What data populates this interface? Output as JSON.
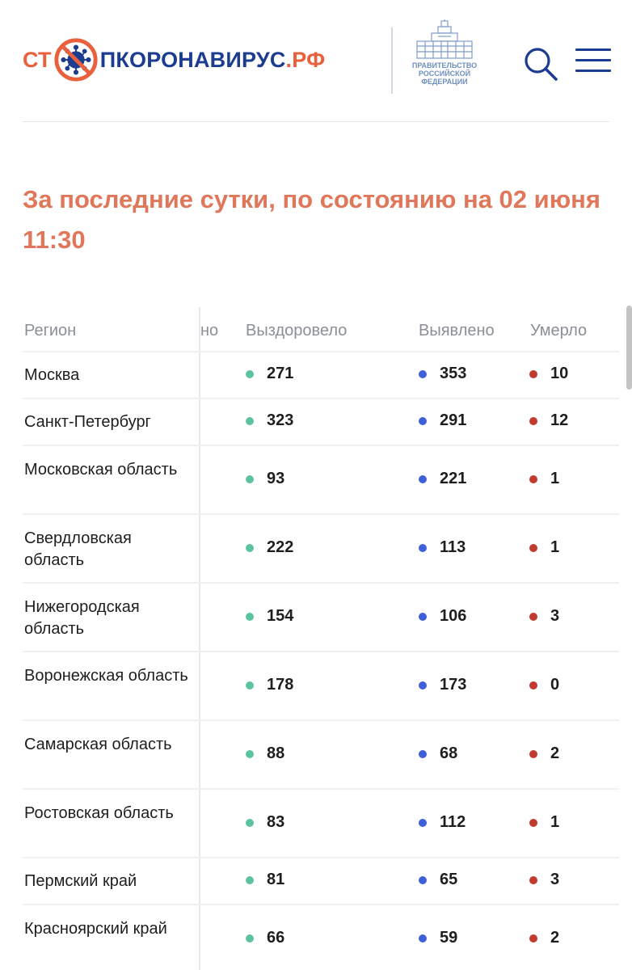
{
  "header": {
    "logo": {
      "part1": "СТ",
      "part2": "ПКОРОНАВИРУС",
      "part3": ".РФ"
    },
    "gov": {
      "line1": "ПРАВИТЕЛЬСТВО",
      "line2": "РОССИЙСКОЙ",
      "line3": "ФЕДЕРАЦИИ"
    },
    "search_icon": "search-icon",
    "menu_icon": "hamburger-menu-icon"
  },
  "heading": {
    "line1": "За последние сутки, по состоянию на 02 июня",
    "line2": "11:30"
  },
  "table": {
    "headers": {
      "region": "Регион",
      "hidden": "но",
      "recovered": "Выздоровело",
      "detected": "Выявлено",
      "died": "Умерло"
    },
    "rows": [
      {
        "region": "Москва",
        "recovered": "271",
        "detected": "353",
        "died": "10"
      },
      {
        "region": "Санкт-Петербург",
        "recovered": "323",
        "detected": "291",
        "died": "12"
      },
      {
        "region": "Московская область",
        "recovered": "93",
        "detected": "221",
        "died": "1"
      },
      {
        "region": "Свердловская область",
        "recovered": "222",
        "detected": "113",
        "died": "1"
      },
      {
        "region": "Нижегородская область",
        "recovered": "154",
        "detected": "106",
        "died": "3"
      },
      {
        "region": "Воронежская область",
        "recovered": "178",
        "detected": "173",
        "died": "0"
      },
      {
        "region": "Самарская область",
        "recovered": "88",
        "detected": "68",
        "died": "2"
      },
      {
        "region": "Ростовская область",
        "recovered": "83",
        "detected": "112",
        "died": "1"
      },
      {
        "region": "Пермский край",
        "recovered": "81",
        "detected": "65",
        "died": "3"
      },
      {
        "region": "Красноярский край",
        "recovered": "66",
        "detected": "59",
        "died": "2"
      }
    ]
  },
  "colors": {
    "brand_orange": "#e8613c",
    "brand_blue": "#1c3d8f",
    "recovered": "#5cc3a2",
    "detected": "#3f60d8",
    "died": "#c2392f"
  }
}
